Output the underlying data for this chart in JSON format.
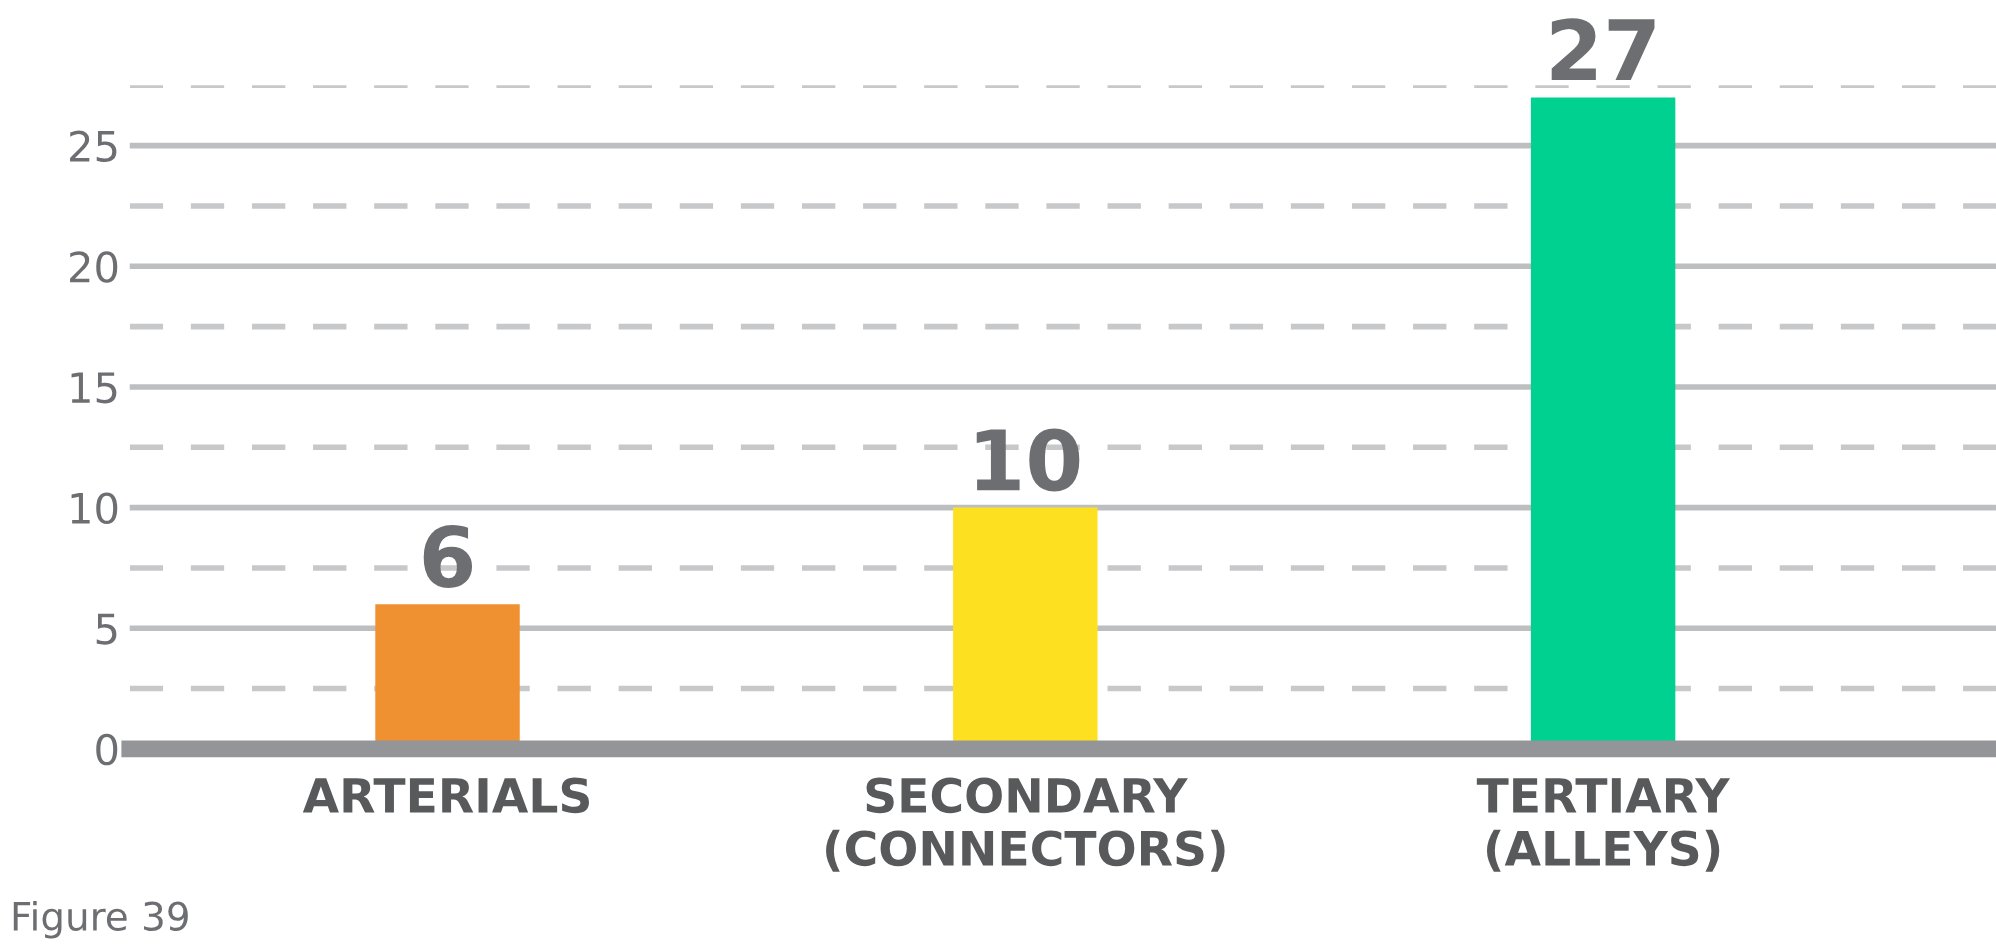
{
  "chart_data": {
    "type": "bar",
    "categories": [
      "ARTERIALS",
      "SECONDARY\n(CONNECTORS)",
      "TERTIARY\n(ALLEYS)"
    ],
    "values": [
      6,
      10,
      27
    ],
    "colors": [
      "#ef9130",
      "#fde121",
      "#00d190"
    ],
    "ylim": [
      0,
      27.5
    ],
    "yticks": [
      0,
      {
        "value": 2.5,
        "label": null
      },
      5,
      {
        "value": 7.5,
        "label": null
      },
      10,
      {
        "value": 12.5,
        "label": null
      },
      15,
      {
        "value": 17.5,
        "label": null
      },
      20,
      {
        "value": 22.5,
        "label": null
      },
      25,
      {
        "value": 27.5,
        "label": null
      }
    ],
    "grid": "y",
    "data_labels": true,
    "annotations": [
      "Figure 39"
    ]
  }
}
